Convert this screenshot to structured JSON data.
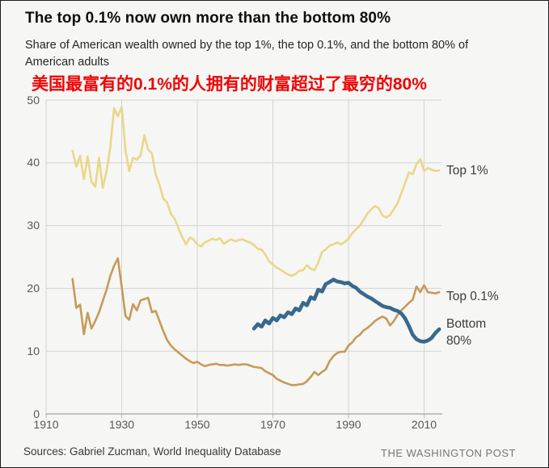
{
  "page": {
    "title": "The top 0.1% now own more than the bottom 80%",
    "subtitle": "Share of American wealth owned by the top 1%, the top 0.1%, and the bottom 80% of American adults",
    "annotation_cn": "美国最富有的0.1%的人拥有的财富超过了最穷的80%",
    "source": "Sources: Gabriel Zucman, World Inequality Database",
    "credit": "THE WASHINGTON POST"
  },
  "colors": {
    "grid": "#d4d4d2",
    "axis": "#a3a3a1",
    "tick": "#b9b9b7",
    "annotation_red": "#ee0505"
  },
  "chart_data": {
    "type": "line",
    "title": "The top 0.1% now own more than the bottom 80%",
    "xlabel": "",
    "ylabel": "",
    "xlim": [
      1910,
      2015
    ],
    "ylim": [
      0,
      50
    ],
    "grid": true,
    "legend_position": "right-of-line-ends",
    "x_ticks": [
      1910,
      1930,
      1950,
      1970,
      1990,
      2010
    ],
    "y_ticks": [
      0,
      10,
      20,
      30,
      40,
      50
    ],
    "series": [
      {
        "name": "Top 1%",
        "label": "Top 1%",
        "color": "#e9d78a",
        "stroke_width": 2.6,
        "points": [
          [
            1917,
            41.9
          ],
          [
            1918,
            39.4
          ],
          [
            1919,
            41.1
          ],
          [
            1920,
            37.4
          ],
          [
            1921,
            41.0
          ],
          [
            1922,
            37.0
          ],
          [
            1923,
            36.2
          ],
          [
            1924,
            40.8
          ],
          [
            1925,
            36.0
          ],
          [
            1926,
            38.7
          ],
          [
            1927,
            42.5
          ],
          [
            1928,
            48.7
          ],
          [
            1929,
            47.4
          ],
          [
            1930,
            48.9
          ],
          [
            1931,
            42.0
          ],
          [
            1932,
            38.7
          ],
          [
            1933,
            40.8
          ],
          [
            1934,
            40.5
          ],
          [
            1935,
            41.2
          ],
          [
            1936,
            44.4
          ],
          [
            1937,
            42.1
          ],
          [
            1938,
            41.5
          ],
          [
            1939,
            38.1
          ],
          [
            1940,
            36.5
          ],
          [
            1941,
            34.3
          ],
          [
            1942,
            33.7
          ],
          [
            1943,
            31.9
          ],
          [
            1944,
            31.1
          ],
          [
            1945,
            29.6
          ],
          [
            1946,
            28.2
          ],
          [
            1947,
            27.0
          ],
          [
            1948,
            28.1
          ],
          [
            1949,
            27.8
          ],
          [
            1950,
            27.0
          ],
          [
            1951,
            26.7
          ],
          [
            1952,
            27.3
          ],
          [
            1953,
            27.6
          ],
          [
            1954,
            27.9
          ],
          [
            1955,
            27.7
          ],
          [
            1956,
            28.0
          ],
          [
            1957,
            27.1
          ],
          [
            1958,
            27.5
          ],
          [
            1959,
            27.8
          ],
          [
            1960,
            27.5
          ],
          [
            1961,
            27.7
          ],
          [
            1962,
            27.8
          ],
          [
            1963,
            27.5
          ],
          [
            1964,
            27.3
          ],
          [
            1965,
            26.9
          ],
          [
            1966,
            26.3
          ],
          [
            1967,
            26.2
          ],
          [
            1968,
            25.4
          ],
          [
            1969,
            24.3
          ],
          [
            1970,
            23.8
          ],
          [
            1971,
            23.3
          ],
          [
            1972,
            23.0
          ],
          [
            1973,
            22.6
          ],
          [
            1974,
            22.2
          ],
          [
            1975,
            22.0
          ],
          [
            1976,
            22.3
          ],
          [
            1977,
            22.8
          ],
          [
            1978,
            22.9
          ],
          [
            1979,
            23.7
          ],
          [
            1980,
            23.1
          ],
          [
            1981,
            22.9
          ],
          [
            1982,
            24.1
          ],
          [
            1983,
            25.8
          ],
          [
            1984,
            26.2
          ],
          [
            1985,
            26.8
          ],
          [
            1986,
            27.0
          ],
          [
            1987,
            27.3
          ],
          [
            1988,
            27.0
          ],
          [
            1989,
            27.4
          ],
          [
            1990,
            27.9
          ],
          [
            1991,
            28.8
          ],
          [
            1992,
            29.4
          ],
          [
            1993,
            30.0
          ],
          [
            1994,
            30.9
          ],
          [
            1995,
            31.9
          ],
          [
            1996,
            32.6
          ],
          [
            1997,
            33.1
          ],
          [
            1998,
            32.8
          ],
          [
            1999,
            31.6
          ],
          [
            2000,
            31.3
          ],
          [
            2001,
            31.7
          ],
          [
            2002,
            32.6
          ],
          [
            2003,
            33.6
          ],
          [
            2004,
            35.2
          ],
          [
            2005,
            36.8
          ],
          [
            2006,
            38.5
          ],
          [
            2007,
            38.2
          ],
          [
            2008,
            39.8
          ],
          [
            2009,
            40.6
          ],
          [
            2010,
            38.7
          ],
          [
            2011,
            39.2
          ],
          [
            2012,
            38.9
          ],
          [
            2013,
            38.7
          ],
          [
            2014,
            38.8
          ]
        ]
      },
      {
        "name": "Top 0.1%",
        "label": "Top 0.1%",
        "color": "#c79a58",
        "stroke_width": 2.6,
        "points": [
          [
            1917,
            21.5
          ],
          [
            1918,
            16.9
          ],
          [
            1919,
            17.4
          ],
          [
            1920,
            12.7
          ],
          [
            1921,
            16.1
          ],
          [
            1922,
            13.6
          ],
          [
            1923,
            14.8
          ],
          [
            1924,
            16.2
          ],
          [
            1925,
            18.0
          ],
          [
            1926,
            19.8
          ],
          [
            1927,
            22.0
          ],
          [
            1928,
            23.6
          ],
          [
            1929,
            24.8
          ],
          [
            1930,
            20.3
          ],
          [
            1931,
            15.6
          ],
          [
            1932,
            15.0
          ],
          [
            1933,
            17.5
          ],
          [
            1934,
            16.5
          ],
          [
            1935,
            18.1
          ],
          [
            1936,
            18.3
          ],
          [
            1937,
            18.5
          ],
          [
            1938,
            16.2
          ],
          [
            1939,
            16.4
          ],
          [
            1940,
            14.8
          ],
          [
            1941,
            13.2
          ],
          [
            1942,
            11.8
          ],
          [
            1943,
            10.9
          ],
          [
            1944,
            10.3
          ],
          [
            1945,
            9.8
          ],
          [
            1946,
            9.3
          ],
          [
            1947,
            8.8
          ],
          [
            1948,
            8.4
          ],
          [
            1949,
            8.1
          ],
          [
            1950,
            8.3
          ],
          [
            1951,
            7.9
          ],
          [
            1952,
            7.6
          ],
          [
            1953,
            7.8
          ],
          [
            1954,
            7.9
          ],
          [
            1955,
            8.0
          ],
          [
            1956,
            7.8
          ],
          [
            1957,
            7.8
          ],
          [
            1958,
            7.7
          ],
          [
            1959,
            7.8
          ],
          [
            1960,
            7.9
          ],
          [
            1961,
            7.8
          ],
          [
            1962,
            7.9
          ],
          [
            1963,
            7.9
          ],
          [
            1964,
            7.7
          ],
          [
            1965,
            7.5
          ],
          [
            1966,
            7.4
          ],
          [
            1967,
            7.3
          ],
          [
            1968,
            6.8
          ],
          [
            1969,
            6.5
          ],
          [
            1970,
            6.2
          ],
          [
            1971,
            5.6
          ],
          [
            1972,
            5.3
          ],
          [
            1973,
            5.0
          ],
          [
            1974,
            4.8
          ],
          [
            1975,
            4.6
          ],
          [
            1976,
            4.6
          ],
          [
            1977,
            4.7
          ],
          [
            1978,
            4.8
          ],
          [
            1979,
            5.2
          ],
          [
            1980,
            5.9
          ],
          [
            1981,
            6.7
          ],
          [
            1982,
            6.2
          ],
          [
            1983,
            6.7
          ],
          [
            1984,
            7.1
          ],
          [
            1985,
            8.4
          ],
          [
            1986,
            9.2
          ],
          [
            1987,
            9.7
          ],
          [
            1988,
            9.9
          ],
          [
            1989,
            9.9
          ],
          [
            1990,
            10.9
          ],
          [
            1991,
            11.4
          ],
          [
            1992,
            12.2
          ],
          [
            1993,
            12.6
          ],
          [
            1994,
            13.3
          ],
          [
            1995,
            13.7
          ],
          [
            1996,
            14.2
          ],
          [
            1997,
            14.8
          ],
          [
            1998,
            15.2
          ],
          [
            1999,
            15.5
          ],
          [
            2000,
            15.2
          ],
          [
            2001,
            14.1
          ],
          [
            2002,
            14.8
          ],
          [
            2003,
            15.8
          ],
          [
            2004,
            16.5
          ],
          [
            2005,
            17.1
          ],
          [
            2006,
            17.7
          ],
          [
            2007,
            18.2
          ],
          [
            2008,
            20.3
          ],
          [
            2009,
            19.4
          ],
          [
            2010,
            20.5
          ],
          [
            2011,
            19.4
          ],
          [
            2012,
            19.3
          ],
          [
            2013,
            19.2
          ],
          [
            2014,
            19.4
          ]
        ]
      },
      {
        "name": "Bottom 80%",
        "label": "Bottom 80%",
        "color": "#38688f",
        "stroke_width": 4.6,
        "points": [
          [
            1965,
            13.6
          ],
          [
            1966,
            14.3
          ],
          [
            1967,
            13.9
          ],
          [
            1968,
            14.9
          ],
          [
            1969,
            14.4
          ],
          [
            1970,
            15.3
          ],
          [
            1971,
            14.9
          ],
          [
            1972,
            15.7
          ],
          [
            1973,
            15.4
          ],
          [
            1974,
            16.2
          ],
          [
            1975,
            15.9
          ],
          [
            1976,
            16.8
          ],
          [
            1977,
            16.5
          ],
          [
            1978,
            17.7
          ],
          [
            1979,
            17.3
          ],
          [
            1980,
            18.6
          ],
          [
            1981,
            18.3
          ],
          [
            1982,
            19.8
          ],
          [
            1983,
            19.5
          ],
          [
            1984,
            20.7
          ],
          [
            1985,
            21.0
          ],
          [
            1986,
            21.4
          ],
          [
            1987,
            21.1
          ],
          [
            1988,
            21.0
          ],
          [
            1989,
            20.8
          ],
          [
            1990,
            20.9
          ],
          [
            1991,
            20.4
          ],
          [
            1992,
            20.1
          ],
          [
            1993,
            19.5
          ],
          [
            1994,
            19.1
          ],
          [
            1995,
            18.7
          ],
          [
            1996,
            18.4
          ],
          [
            1997,
            18.0
          ],
          [
            1998,
            17.6
          ],
          [
            1999,
            17.2
          ],
          [
            2000,
            17.0
          ],
          [
            2001,
            16.9
          ],
          [
            2002,
            16.6
          ],
          [
            2003,
            16.4
          ],
          [
            2004,
            16.0
          ],
          [
            2005,
            15.2
          ],
          [
            2006,
            14.0
          ],
          [
            2007,
            12.6
          ],
          [
            2008,
            11.9
          ],
          [
            2009,
            11.6
          ],
          [
            2010,
            11.5
          ],
          [
            2011,
            11.7
          ],
          [
            2012,
            12.1
          ],
          [
            2013,
            12.9
          ],
          [
            2014,
            13.5
          ]
        ]
      }
    ]
  }
}
